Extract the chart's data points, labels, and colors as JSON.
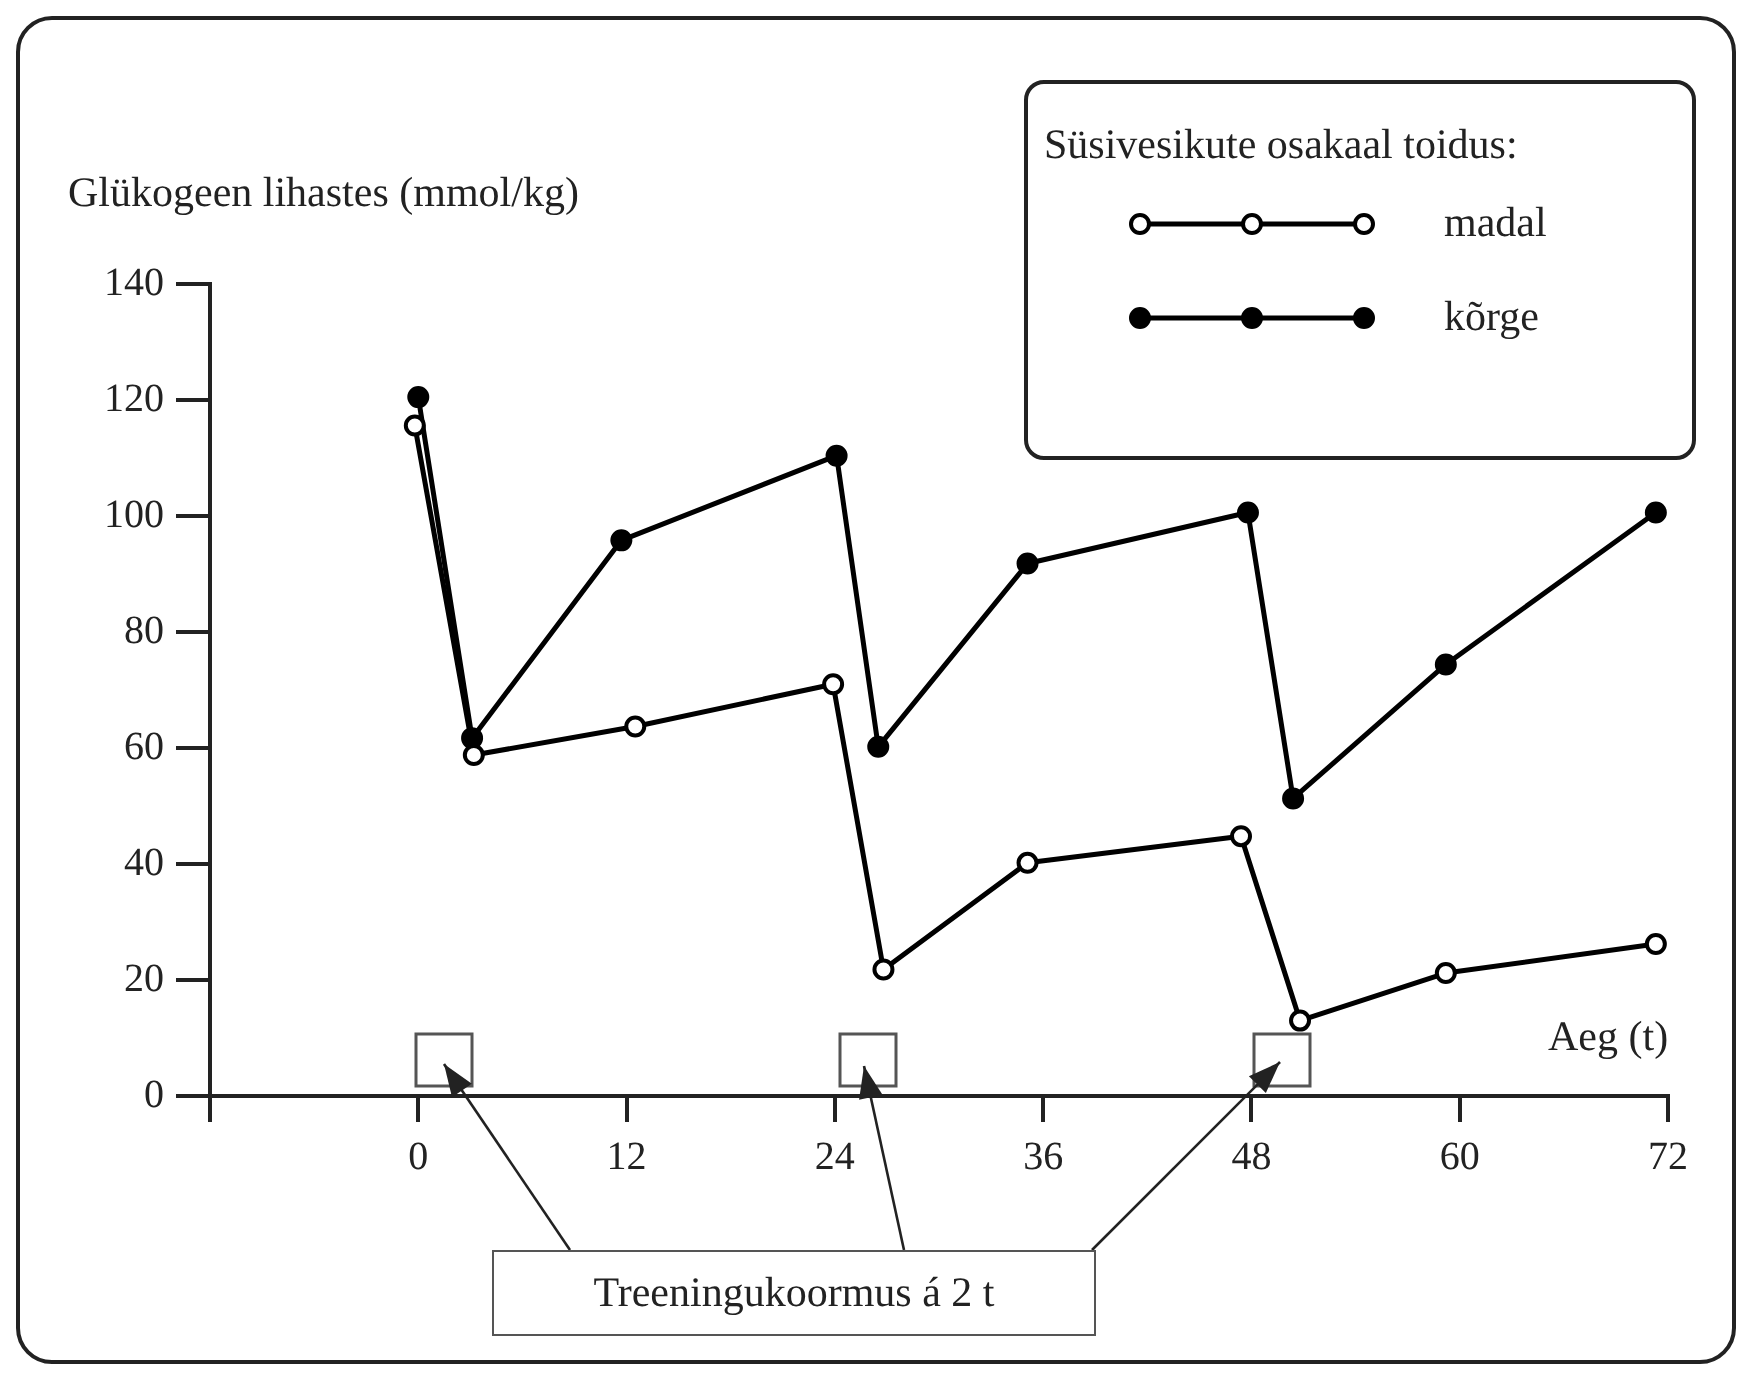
{
  "chart_data": {
    "type": "line",
    "xlabel": "Aeg (t)",
    "ylabel": "Glükogeen lihastes (mmol/kg)",
    "legend_title": "Süsivesikute osakaal toidus:",
    "xlim": [
      -12,
      72
    ],
    "xticks": [
      {
        "value": -12,
        "label": null
      },
      0,
      12,
      24,
      36,
      48,
      60,
      72
    ],
    "ylim": [
      0,
      140
    ],
    "yticks": [
      0,
      20,
      40,
      60,
      80,
      100,
      120,
      140
    ],
    "series": [
      {
        "name": "madal",
        "color": "#000000",
        "x": [
          -0.2,
          3.2,
          12.5,
          23.9,
          26.8,
          35.1,
          47.4,
          50.8,
          59.2,
          71.3
        ],
        "values": [
          115.6,
          58.8,
          63.7,
          71,
          21.8,
          40.2,
          44.8,
          13,
          21.2,
          26.2
        ]
      },
      {
        "name": "kõrge",
        "color": "#000000",
        "x": [
          0,
          3.1,
          11.7,
          24.1,
          26.5,
          35.1,
          47.8,
          50.4,
          59.2,
          71.3
        ],
        "values": [
          120.5,
          61.7,
          95.8,
          110.4,
          60.2,
          91.8,
          100.6,
          51.3,
          74.4,
          100.6
        ]
      }
    ],
    "marker": "circle",
    "line_style": "solid",
    "grid": false,
    "legend": "top right",
    "annotations": [
      "Treeningukoormus á 2 t"
    ]
  }
}
